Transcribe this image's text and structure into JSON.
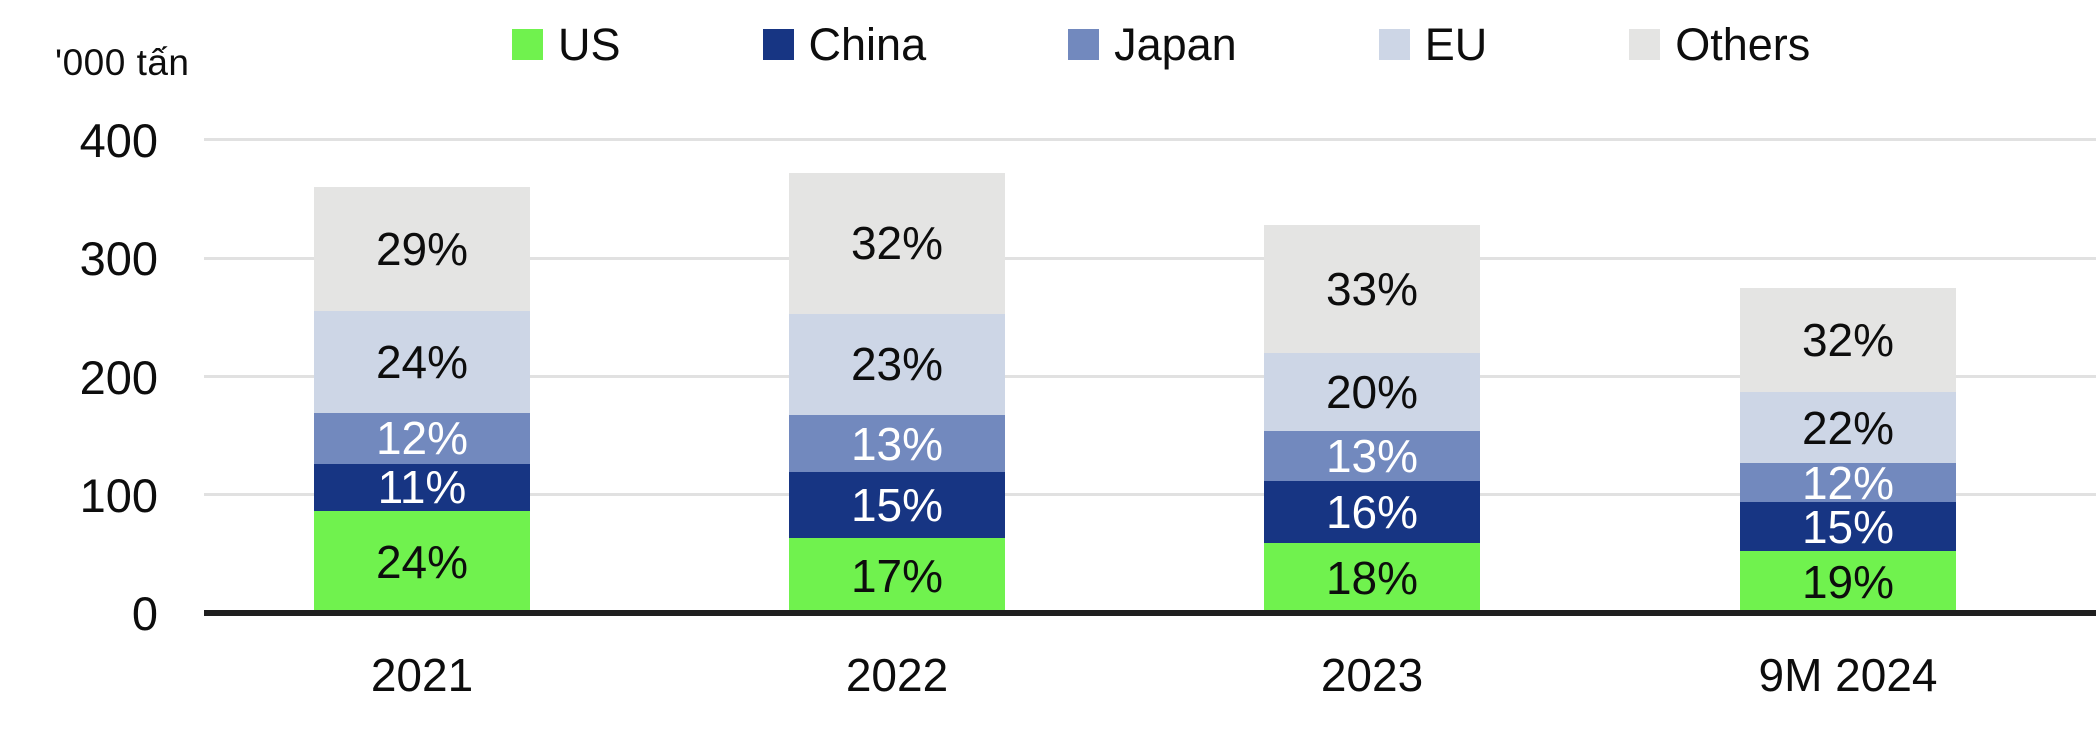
{
  "unit_label": "'000 tấn",
  "colors": {
    "background": "#FFFFFF",
    "gridline": "#E1E1E1",
    "axis_line": "#1F1F1F",
    "text": "#0D0D0D"
  },
  "chart_data": {
    "type": "bar",
    "stacked": true,
    "title": "",
    "xlabel": "",
    "ylabel": "'000 tấn",
    "label_format": "percent",
    "legend_position": "top",
    "categories": [
      "2021",
      "2022",
      "2023",
      "9M 2024"
    ],
    "series": [
      {
        "name": "US",
        "color": "#70F24E",
        "label_color": "#0D0D0D",
        "values_pct": [
          24,
          17,
          18,
          19
        ]
      },
      {
        "name": "China",
        "color": "#173583",
        "label_color": "#FFFFFF",
        "values_pct": [
          11,
          15,
          16,
          15
        ]
      },
      {
        "name": "Japan",
        "color": "#7289BE",
        "label_color": "#FFFFFF",
        "values_pct": [
          12,
          13,
          13,
          12
        ]
      },
      {
        "name": "EU",
        "color": "#CDD6E6",
        "label_color": "#0D0D0D",
        "values_pct": [
          24,
          23,
          20,
          22
        ]
      },
      {
        "name": "Others",
        "color": "#E4E4E3",
        "label_color": "#0D0D0D",
        "values_pct": [
          29,
          32,
          33,
          32
        ]
      }
    ],
    "bar_totals_est_000_tan": [
      360,
      372,
      328,
      275
    ],
    "y_axis": {
      "ticks": [
        0,
        100,
        200,
        300,
        400
      ],
      "range": [
        0,
        400
      ],
      "grid": true
    }
  }
}
